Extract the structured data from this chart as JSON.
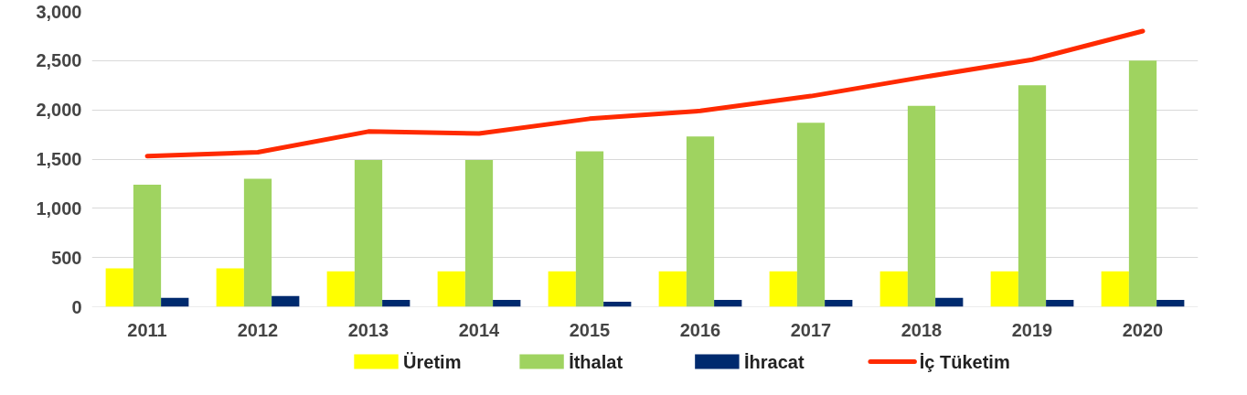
{
  "chart_data": {
    "type": "bar",
    "categories": [
      "2011",
      "2012",
      "2013",
      "2014",
      "2015",
      "2016",
      "2017",
      "2018",
      "2019",
      "2020"
    ],
    "series": [
      {
        "name": "Üretim",
        "color": "#ffff00",
        "values": [
          390,
          390,
          360,
          360,
          360,
          360,
          360,
          360,
          360,
          360
        ]
      },
      {
        "name": "İthalat",
        "color": "#9fd360",
        "values": [
          1240,
          1300,
          1490,
          1490,
          1580,
          1730,
          1870,
          2040,
          2250,
          2500
        ]
      },
      {
        "name": "İhracat",
        "color": "#002a6e",
        "values": [
          90,
          110,
          70,
          70,
          50,
          70,
          70,
          90,
          70,
          70
        ]
      },
      {
        "name": "İç Tüketim",
        "type": "line",
        "color": "#ff2a00",
        "values": [
          1530,
          1570,
          1780,
          1760,
          1910,
          1990,
          2140,
          2330,
          2510,
          2800
        ]
      }
    ],
    "ylim": [
      0,
      3000
    ],
    "yticks": [
      {
        "value": 0,
        "label": "0"
      },
      {
        "value": 500,
        "label": "500"
      },
      {
        "value": 1000,
        "label": "1,000"
      },
      {
        "value": 1500,
        "label": "1,500"
      },
      {
        "value": 2000,
        "label": "2,000"
      },
      {
        "value": 2500,
        "label": "2,500"
      },
      {
        "value": 3000,
        "label": "3,000"
      }
    ],
    "grid": "y",
    "legend": "bottom"
  }
}
